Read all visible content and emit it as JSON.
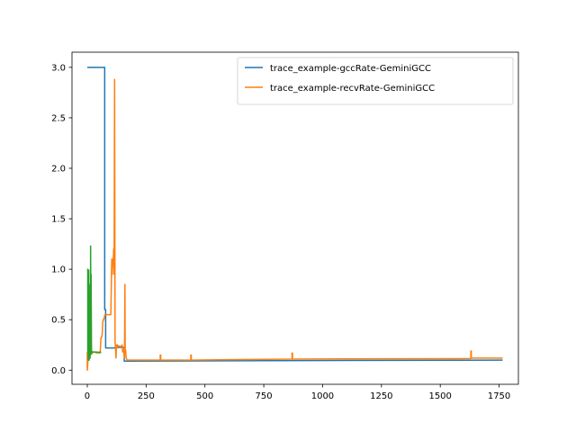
{
  "chart_data": {
    "type": "line",
    "xlim": [
      -65,
      1832
    ],
    "ylim": [
      -0.14,
      3.15
    ],
    "xticks": [
      0,
      250,
      500,
      750,
      1000,
      1250,
      1500,
      1750
    ],
    "xtick_labels": [
      "0",
      "250",
      "500",
      "750",
      "1000",
      "1250",
      "1500",
      "1750"
    ],
    "yticks": [
      0.0,
      0.5,
      1.0,
      1.5,
      2.0,
      2.5,
      3.0
    ],
    "ytick_labels": [
      "0.0",
      "0.5",
      "1.0",
      "1.5",
      "2.0",
      "2.5",
      "3.0"
    ],
    "legend_position": "top-right",
    "series": [
      {
        "name": "trace_example-gccRate-GeminiGCC",
        "color": "#1f77b4",
        "in_legend": true,
        "x": [
          0,
          74,
          74,
          78,
          78,
          118,
          118,
          157,
          157,
          1765
        ],
        "y": [
          3.0,
          3.0,
          0.6,
          0.6,
          0.22,
          0.22,
          0.225,
          0.225,
          0.09,
          0.1
        ]
      },
      {
        "name": "trace_example-recvRate-GeminiGCC",
        "color": "#ff7f0e",
        "in_legend": true,
        "x": [
          0,
          0,
          2,
          4,
          8,
          12,
          20,
          30,
          40,
          50,
          55,
          58,
          60,
          63,
          66,
          68,
          70,
          72,
          75,
          80,
          90,
          100,
          104,
          106,
          108,
          110,
          112,
          114,
          116,
          118,
          120,
          122,
          124,
          126,
          128,
          130,
          135,
          140,
          145,
          148,
          150,
          152,
          155,
          158,
          160,
          161,
          162,
          163,
          165,
          170,
          200,
          310,
          310,
          312,
          312,
          440,
          440,
          442,
          442,
          870,
          870,
          872,
          872,
          1630,
          1630,
          1632,
          1632,
          1765
        ],
        "y": [
          0.18,
          0.0,
          0.06,
          0.15,
          0.17,
          0.17,
          0.17,
          0.18,
          0.17,
          0.18,
          0.18,
          0.32,
          0.32,
          0.35,
          0.48,
          0.5,
          0.5,
          0.52,
          0.55,
          0.55,
          0.55,
          0.55,
          1.1,
          0.95,
          1.1,
          1.05,
          1.2,
          0.95,
          2.88,
          0.28,
          0.22,
          0.12,
          0.25,
          0.22,
          0.25,
          0.24,
          0.24,
          0.23,
          0.24,
          0.25,
          0.18,
          0.2,
          0.18,
          0.12,
          0.85,
          0.2,
          0.18,
          0.2,
          0.12,
          0.1,
          0.1,
          0.1,
          0.15,
          0.15,
          0.1,
          0.1,
          0.15,
          0.15,
          0.1,
          0.11,
          0.17,
          0.17,
          0.11,
          0.115,
          0.19,
          0.19,
          0.12,
          0.12
        ]
      },
      {
        "name": "",
        "color": "#2ca02c",
        "in_legend": false,
        "x": [
          0,
          2,
          2,
          4,
          4,
          6,
          6,
          8,
          8,
          10,
          10,
          12,
          12,
          14,
          14,
          16,
          16,
          18,
          18,
          20,
          20,
          30,
          40,
          50,
          55,
          58
        ],
        "y": [
          0.18,
          0.18,
          1.0,
          0.1,
          0.95,
          0.12,
          0.99,
          0.1,
          0.85,
          0.15,
          0.6,
          0.12,
          0.4,
          0.15,
          1.23,
          0.18,
          0.95,
          0.16,
          0.2,
          0.18,
          0.18,
          0.18,
          0.18,
          0.17,
          0.18,
          0.17
        ]
      }
    ]
  }
}
